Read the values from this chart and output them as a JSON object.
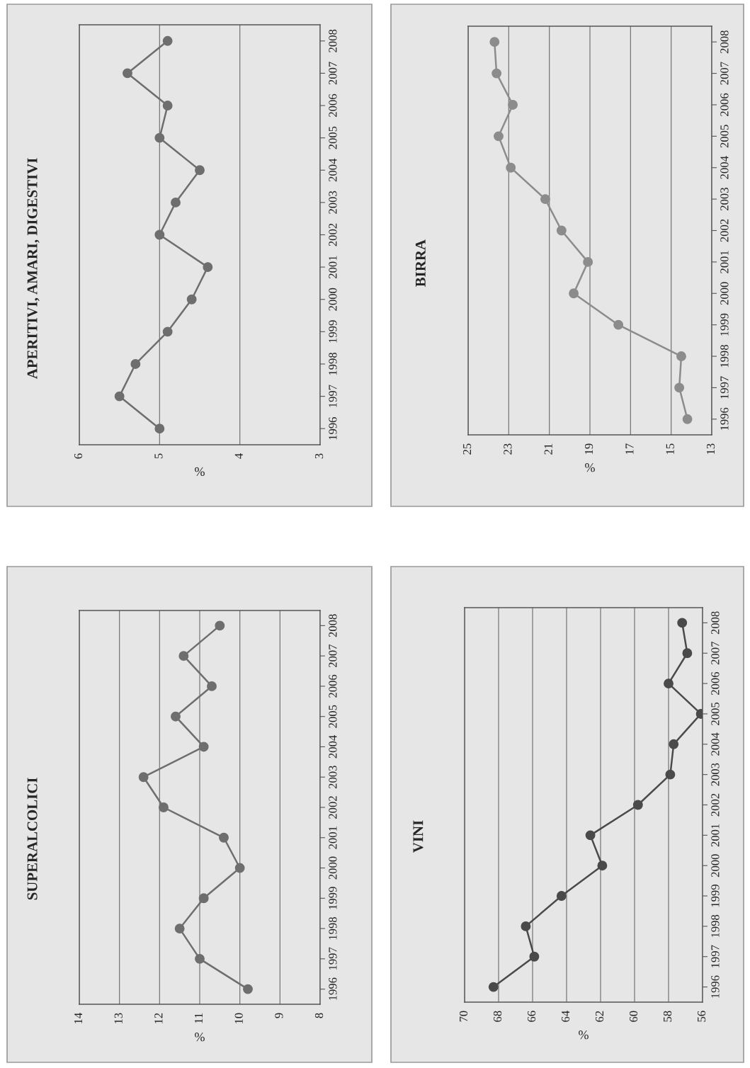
{
  "chart_data": [
    {
      "type": "line",
      "orientation": "horizontal",
      "title": "SUPERALCOLICI",
      "xlabel": "%",
      "categories": [
        "2008",
        "2007",
        "2006",
        "2005",
        "2004",
        "2003",
        "2002",
        "2001",
        "2000",
        "1999",
        "1998",
        "1997",
        "1996"
      ],
      "series": [
        {
          "color": "#6e6e6e",
          "values": [
            10.5,
            11.4,
            10.7,
            11.6,
            10.9,
            12.4,
            11.9,
            10.4,
            10.0,
            10.9,
            11.5,
            11.0,
            9.8
          ]
        }
      ],
      "xlim": [
        14,
        8
      ],
      "xticks": [
        14,
        13,
        12,
        11,
        10,
        9,
        8
      ],
      "grid": "x",
      "marker": "circle",
      "line_style": "solid"
    },
    {
      "type": "line",
      "orientation": "horizontal",
      "title": "APERITIVI, AMARI, DIGESTIVI",
      "xlabel": "%",
      "categories": [
        "2008",
        "2007",
        "2006",
        "2005",
        "2004",
        "2003",
        "2002",
        "2001",
        "2000",
        "1999",
        "1998",
        "1997",
        "1996"
      ],
      "series": [
        {
          "color": "#6e6e6e",
          "values": [
            4.9,
            5.4,
            4.9,
            5.0,
            4.5,
            4.8,
            5.0,
            4.4,
            4.6,
            4.9,
            5.3,
            5.5,
            5.0
          ]
        }
      ],
      "xlim": [
        6,
        3
      ],
      "xticks": [
        6,
        5,
        4,
        3
      ],
      "grid": "x",
      "marker": "circle",
      "line_style": "solid"
    },
    {
      "type": "line",
      "orientation": "horizontal",
      "title": "VINI",
      "xlabel": "%",
      "categories": [
        "2008",
        "2007",
        "2006",
        "2005",
        "2004",
        "2003",
        "2002",
        "2001",
        "2000",
        "1999",
        "1998",
        "1997",
        "1996"
      ],
      "series": [
        {
          "color": "#4a4a4a",
          "values": [
            57.2,
            56.9,
            58.0,
            56.1,
            57.7,
            57.9,
            59.8,
            62.6,
            61.9,
            64.3,
            66.4,
            65.9,
            68.3
          ]
        }
      ],
      "xlim": [
        70,
        56
      ],
      "xticks": [
        70,
        68,
        66,
        64,
        62,
        60,
        58,
        56
      ],
      "grid": "x",
      "marker": "circle",
      "line_style": "solid"
    },
    {
      "type": "line",
      "orientation": "horizontal",
      "title": "BIRRA",
      "xlabel": "%",
      "categories": [
        "2008",
        "2007",
        "2006",
        "2005",
        "2004",
        "2003",
        "2002",
        "2001",
        "2000",
        "1999",
        "1998",
        "1997",
        "1996"
      ],
      "series": [
        {
          "color": "#8c8c8c",
          "values": [
            23.7,
            23.6,
            22.8,
            23.5,
            22.9,
            21.2,
            20.4,
            19.1,
            19.8,
            17.6,
            14.5,
            14.6,
            14.2
          ]
        }
      ],
      "xlim": [
        25,
        13
      ],
      "xticks": [
        25,
        23,
        21,
        19,
        17,
        15,
        13
      ],
      "grid": "x",
      "marker": "circle",
      "line_style": "solid"
    }
  ]
}
